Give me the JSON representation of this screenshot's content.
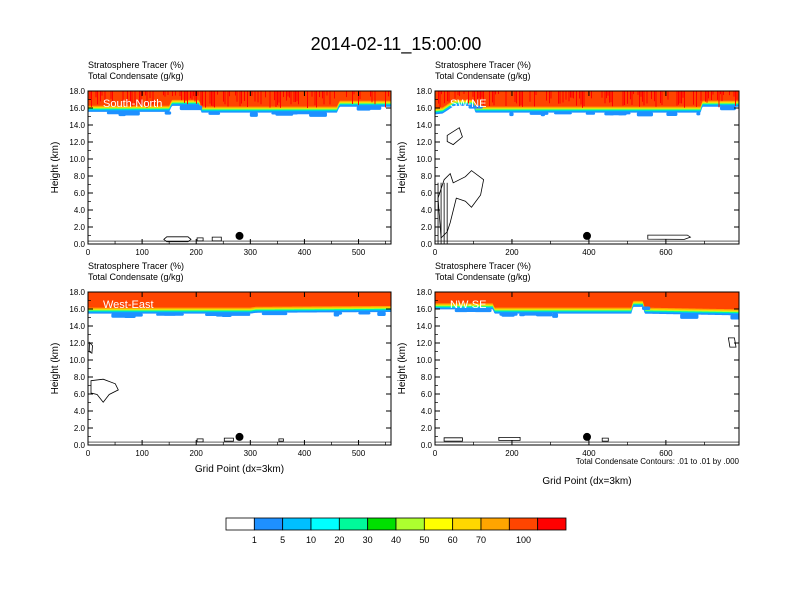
{
  "figure_title": "2014-02-11_15:00:00",
  "footnote": "Total Condensate Contours: .01 to .01 by .000",
  "colorbar": {
    "labels": [
      "1",
      "5",
      "10",
      "20",
      "30",
      "40",
      "50",
      "60",
      "70",
      "100"
    ],
    "colors": [
      "#ffffff",
      "#1e90ff",
      "#00bfff",
      "#00ffff",
      "#00fa9a",
      "#00e000",
      "#adff2f",
      "#ffff00",
      "#ffd700",
      "#ffa500",
      "#ff4500",
      "#ff0000"
    ]
  },
  "chart_data": [
    {
      "type": "heatmap",
      "name": "South-North",
      "var_label_1": "Stratosphere Tracer   (%)",
      "var_label_2": "Total Condensate   (g/kg)",
      "ylabel": "Height (km)",
      "xlabel": "",
      "xlim": [
        0,
        560
      ],
      "ylim": [
        0,
        18
      ],
      "xticks": [
        "0",
        "100",
        "200",
        "300",
        "400",
        "500"
      ],
      "yticks": [
        "0.0",
        "2.0",
        "4.0",
        "6.0",
        "8.0",
        "10.0",
        "12.0",
        "14.0",
        "16.0",
        "18.0"
      ],
      "marker_x": 280,
      "tropopause": [
        [
          0,
          15.9
        ],
        [
          150,
          15.9
        ],
        [
          155,
          16.6
        ],
        [
          205,
          16.6
        ],
        [
          210,
          15.8
        ],
        [
          460,
          15.8
        ],
        [
          465,
          16.5
        ],
        [
          560,
          16.5
        ]
      ]
    },
    {
      "type": "heatmap",
      "name": "SW-NE",
      "var_label_1": "Stratosphere Tracer   (%)",
      "var_label_2": "Total Condensate   (g/kg)",
      "ylabel": "Height (km)",
      "xlabel": "",
      "xlim": [
        0,
        790
      ],
      "ylim": [
        0,
        18
      ],
      "xticks": [
        "0",
        "200",
        "400",
        "600"
      ],
      "yticks": [
        "0.0",
        "2.0",
        "4.0",
        "6.0",
        "8.0",
        "10.0",
        "12.0",
        "14.0",
        "16.0",
        "18.0"
      ],
      "marker_x": 395,
      "tropopause": [
        [
          0,
          15.6
        ],
        [
          20,
          15.7
        ],
        [
          30,
          16.0
        ],
        [
          50,
          16.6
        ],
        [
          100,
          16.6
        ],
        [
          105,
          15.8
        ],
        [
          690,
          15.8
        ],
        [
          695,
          16.5
        ],
        [
          790,
          16.5
        ]
      ]
    },
    {
      "type": "heatmap",
      "name": "West-East",
      "var_label_1": "Stratosphere Tracer   (%)",
      "var_label_2": "Total Condensate   (g/kg)",
      "ylabel": "Height (km)",
      "xlabel": "Grid Point (dx=3km)",
      "xlim": [
        0,
        560
      ],
      "ylim": [
        0,
        18
      ],
      "xticks": [
        "0",
        "100",
        "200",
        "300",
        "400",
        "500"
      ],
      "yticks": [
        "0.0",
        "2.0",
        "4.0",
        "6.0",
        "8.0",
        "10.0",
        "12.0",
        "14.0",
        "16.0",
        "18.0"
      ],
      "marker_x": 280,
      "tropopause": [
        [
          0,
          15.8
        ],
        [
          300,
          15.8
        ],
        [
          310,
          15.9
        ],
        [
          560,
          16.0
        ]
      ]
    },
    {
      "type": "heatmap",
      "name": "NW-SE",
      "var_label_1": "Stratosphere Tracer   (%)",
      "var_label_2": "Total Condensate   (g/kg)",
      "ylabel": "Height (km)",
      "xlabel": "Grid Point (dx=3km)",
      "xlim": [
        0,
        790
      ],
      "ylim": [
        0,
        18
      ],
      "xticks": [
        "0",
        "200",
        "400",
        "600"
      ],
      "yticks": [
        "0.0",
        "2.0",
        "4.0",
        "6.0",
        "8.0",
        "10.0",
        "12.0",
        "14.0",
        "16.0",
        "18.0"
      ],
      "marker_x": 395,
      "tropopause": [
        [
          0,
          16.3
        ],
        [
          150,
          16.3
        ],
        [
          155,
          15.8
        ],
        [
          510,
          15.8
        ],
        [
          515,
          16.6
        ],
        [
          540,
          16.6
        ],
        [
          545,
          15.8
        ],
        [
          790,
          15.6
        ]
      ]
    }
  ]
}
